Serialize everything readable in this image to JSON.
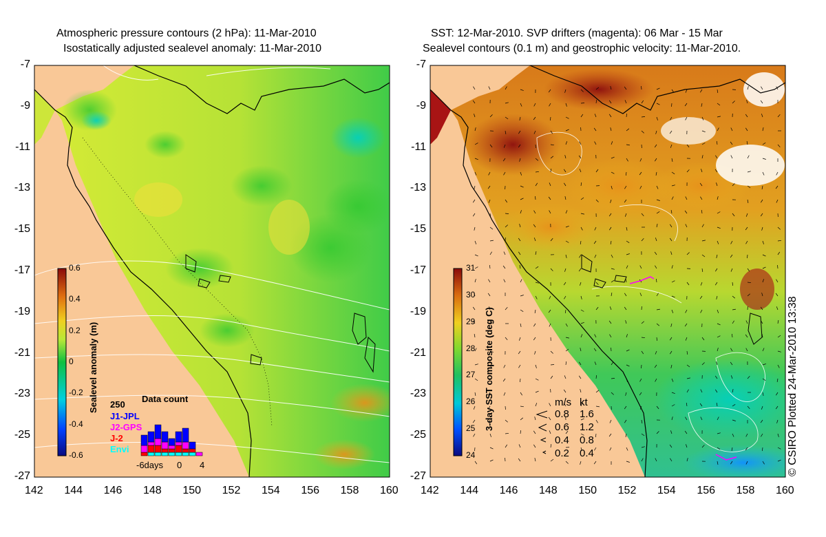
{
  "left_map": {
    "title_line1": "Atmospheric pressure contours (2 hPa): 11-Mar-2010",
    "title_line2": "Isostatically adjusted sealevel anomaly: 11-Mar-2010",
    "colorbar_label": "Sealevel anomaly (m)",
    "colorbar_ticks": [
      "0.6",
      "0.4",
      "0.2",
      "0",
      "-0.2",
      "-0.4",
      "-0.6"
    ],
    "data_count": {
      "title": "Data count",
      "ymax_label": "250",
      "missions": [
        {
          "label": "J1-JPL",
          "color": "#0000ff"
        },
        {
          "label": "J2-GPS",
          "color": "#ff00ff"
        },
        {
          "label": "J-2",
          "color": "#ff0000"
        },
        {
          "label": "Envi",
          "color": "#00ffff"
        }
      ],
      "x_labels": [
        "-6days",
        "0",
        "4"
      ]
    }
  },
  "right_map": {
    "title_line1": "SST: 12-Mar-2010. SVP drifters (magenta): 06 Mar - 15 Mar",
    "title_line2": "Sealevel contours (0.1 m) and geostrophic velocity: 11-Mar-2010.",
    "colorbar_label": "3-day SST composite (deg C)",
    "colorbar_ticks": [
      "31",
      "30",
      "29",
      "28",
      "27",
      "26",
      "25",
      "24"
    ],
    "velocity_legend": {
      "header_ms": "m/s",
      "header_kt": "kt",
      "rows": [
        {
          "ms": "0.8",
          "kt": "1.6"
        },
        {
          "ms": "0.6",
          "kt": "1.2"
        },
        {
          "ms": "0.4",
          "kt": "0.8"
        },
        {
          "ms": "0.2",
          "kt": "0.4"
        }
      ]
    }
  },
  "axes": {
    "lat_labels": [
      "-7",
      "-9",
      "-11",
      "-13",
      "-15",
      "-17",
      "-19",
      "-21",
      "-23",
      "-25",
      "-27"
    ],
    "lon_labels": [
      "142",
      "144",
      "146",
      "148",
      "150",
      "152",
      "154",
      "156",
      "158",
      "160"
    ]
  },
  "credit": "© CSIRO Plotted 24-Mar-2010 13:38",
  "colors": {
    "land": "#f9c897",
    "ocean_green": "#4cd34a",
    "ocean_yellow": "#d7ea38",
    "sst_warm": "#c65a1a",
    "sst_hot": "#9c1010",
    "sst_cool": "#2bd6a0"
  }
}
